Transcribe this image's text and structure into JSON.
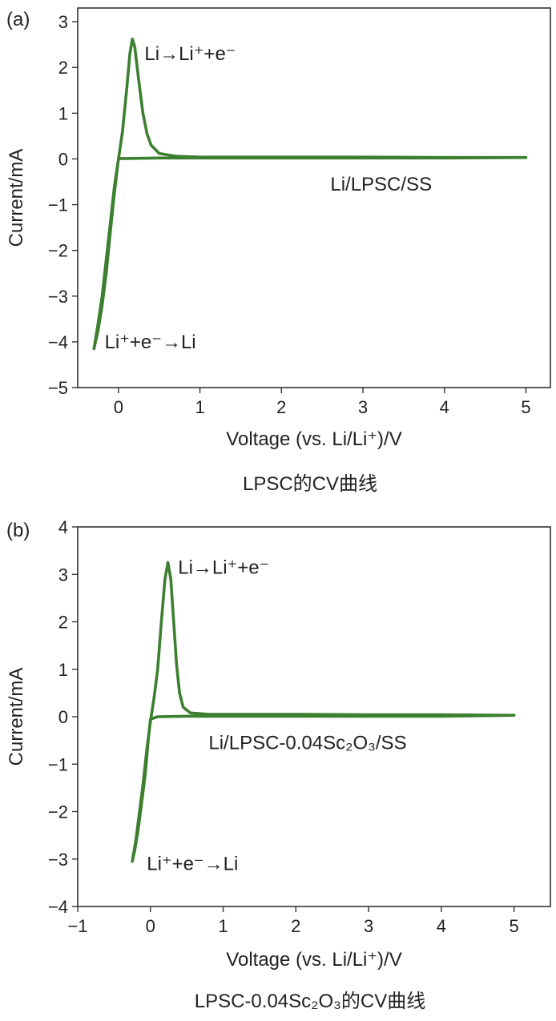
{
  "chart_data": [
    {
      "type": "line",
      "panel_label": "(a)",
      "caption": "LPSC的CV曲线",
      "xlabel": "Voltage (vs. Li/Li⁺)/V",
      "ylabel": "Current/mA",
      "xlim": [
        -0.5,
        5.3
      ],
      "ylim": [
        -5,
        3.3
      ],
      "xticks": [
        {
          "v": 0,
          "label": "0"
        },
        {
          "v": 1,
          "label": "1"
        },
        {
          "v": 2,
          "label": "2"
        },
        {
          "v": 3,
          "label": "3"
        },
        {
          "v": 4,
          "label": "4"
        },
        {
          "v": 5,
          "label": "5"
        }
      ],
      "yticks": [
        {
          "v": -5,
          "label": "−5"
        },
        {
          "v": -4,
          "label": "−4"
        },
        {
          "v": -3,
          "label": "−3"
        },
        {
          "v": -2,
          "label": "−2"
        },
        {
          "v": -1,
          "label": "−1"
        },
        {
          "v": 0,
          "label": "0"
        },
        {
          "v": 1,
          "label": "1"
        },
        {
          "v": 2,
          "label": "2"
        },
        {
          "v": 3,
          "label": "3"
        }
      ],
      "series_color": "#3b7f2f",
      "annotations": [
        {
          "text": "Li→Li⁺+e⁻",
          "x": 0.32,
          "y": 2.3,
          "anchor": "start"
        },
        {
          "text": "Li/LPSC/SS",
          "x": 2.6,
          "y": -0.55,
          "anchor": "start"
        },
        {
          "text": "Li⁺+e⁻→Li",
          "x": -0.17,
          "y": -4.0,
          "anchor": "start"
        }
      ],
      "series": [
        {
          "values": [
            [
              -0.3,
              -4.15
            ],
            [
              -0.25,
              -3.6
            ],
            [
              -0.2,
              -3.0
            ],
            [
              -0.15,
              -2.2
            ],
            [
              -0.1,
              -1.4
            ],
            [
              -0.05,
              -0.6
            ],
            [
              0.0,
              0.0
            ],
            [
              0.05,
              0.6
            ],
            [
              0.1,
              1.5
            ],
            [
              0.14,
              2.3
            ],
            [
              0.17,
              2.62
            ],
            [
              0.2,
              2.45
            ],
            [
              0.25,
              1.7
            ],
            [
              0.3,
              1.0
            ],
            [
              0.35,
              0.55
            ],
            [
              0.4,
              0.3
            ],
            [
              0.5,
              0.12
            ],
            [
              0.7,
              0.06
            ],
            [
              1.0,
              0.04
            ],
            [
              1.5,
              0.04
            ],
            [
              2.0,
              0.04
            ],
            [
              3.0,
              0.04
            ],
            [
              4.0,
              0.03
            ],
            [
              5.0,
              0.03
            ],
            [
              4.0,
              0.02
            ],
            [
              3.0,
              0.02
            ],
            [
              2.0,
              0.02
            ],
            [
              1.0,
              0.02
            ],
            [
              0.5,
              0.02
            ],
            [
              0.1,
              0.01
            ],
            [
              0.0,
              0.01
            ],
            [
              -0.02,
              -0.3
            ],
            [
              -0.06,
              -0.9
            ],
            [
              -0.1,
              -1.6
            ],
            [
              -0.15,
              -2.5
            ],
            [
              -0.2,
              -3.2
            ],
            [
              -0.25,
              -3.75
            ],
            [
              -0.3,
              -4.15
            ]
          ]
        }
      ]
    },
    {
      "type": "line",
      "panel_label": "(b)",
      "caption": "LPSC-0.04Sc₂O₃的CV曲线",
      "xlabel": "Voltage (vs. Li/Li⁺)/V",
      "ylabel": "Current/mA",
      "xlim": [
        -1,
        5.5
      ],
      "ylim": [
        -4,
        4
      ],
      "xticks": [
        {
          "v": -1,
          "label": "−1"
        },
        {
          "v": 0,
          "label": "0"
        },
        {
          "v": 1,
          "label": "1"
        },
        {
          "v": 2,
          "label": "2"
        },
        {
          "v": 3,
          "label": "3"
        },
        {
          "v": 4,
          "label": "4"
        },
        {
          "v": 5,
          "label": "5"
        }
      ],
      "yticks": [
        {
          "v": -4,
          "label": "−4"
        },
        {
          "v": -3,
          "label": "−3"
        },
        {
          "v": -2,
          "label": "−2"
        },
        {
          "v": -1,
          "label": "−1"
        },
        {
          "v": 0,
          "label": "0"
        },
        {
          "v": 1,
          "label": "1"
        },
        {
          "v": 2,
          "label": "2"
        },
        {
          "v": 3,
          "label": "3"
        },
        {
          "v": 4,
          "label": "4"
        }
      ],
      "series_color": "#3b7f2f",
      "annotations": [
        {
          "text": "Li→Li⁺+e⁻",
          "x": 0.38,
          "y": 3.15,
          "anchor": "start"
        },
        {
          "text": "Li/LPSC-0.04Sc₂O₃/SS",
          "x": 0.8,
          "y": -0.55,
          "anchor": "start"
        },
        {
          "text": "Li⁺+e⁻→Li",
          "x": -0.05,
          "y": -3.1,
          "anchor": "start"
        }
      ],
      "series": [
        {
          "values": [
            [
              -0.25,
              -3.05
            ],
            [
              -0.2,
              -2.6
            ],
            [
              -0.15,
              -2.0
            ],
            [
              -0.1,
              -1.4
            ],
            [
              -0.05,
              -0.7
            ],
            [
              0.0,
              -0.1
            ],
            [
              0.05,
              0.4
            ],
            [
              0.1,
              1.0
            ],
            [
              0.15,
              2.0
            ],
            [
              0.2,
              2.9
            ],
            [
              0.24,
              3.25
            ],
            [
              0.28,
              2.9
            ],
            [
              0.32,
              2.0
            ],
            [
              0.36,
              1.1
            ],
            [
              0.4,
              0.5
            ],
            [
              0.45,
              0.2
            ],
            [
              0.55,
              0.08
            ],
            [
              0.8,
              0.05
            ],
            [
              1.0,
              0.05
            ],
            [
              2.0,
              0.05
            ],
            [
              3.0,
              0.04
            ],
            [
              4.0,
              0.04
            ],
            [
              5.0,
              0.03
            ],
            [
              4.0,
              0.01
            ],
            [
              3.0,
              0.01
            ],
            [
              2.0,
              0.01
            ],
            [
              1.0,
              0.01
            ],
            [
              0.5,
              0.01
            ],
            [
              0.1,
              0.0
            ],
            [
              0.0,
              -0.05
            ],
            [
              -0.03,
              -0.5
            ],
            [
              -0.07,
              -1.2
            ],
            [
              -0.12,
              -1.8
            ],
            [
              -0.17,
              -2.4
            ],
            [
              -0.22,
              -2.85
            ],
            [
              -0.25,
              -3.05
            ]
          ]
        }
      ]
    }
  ]
}
